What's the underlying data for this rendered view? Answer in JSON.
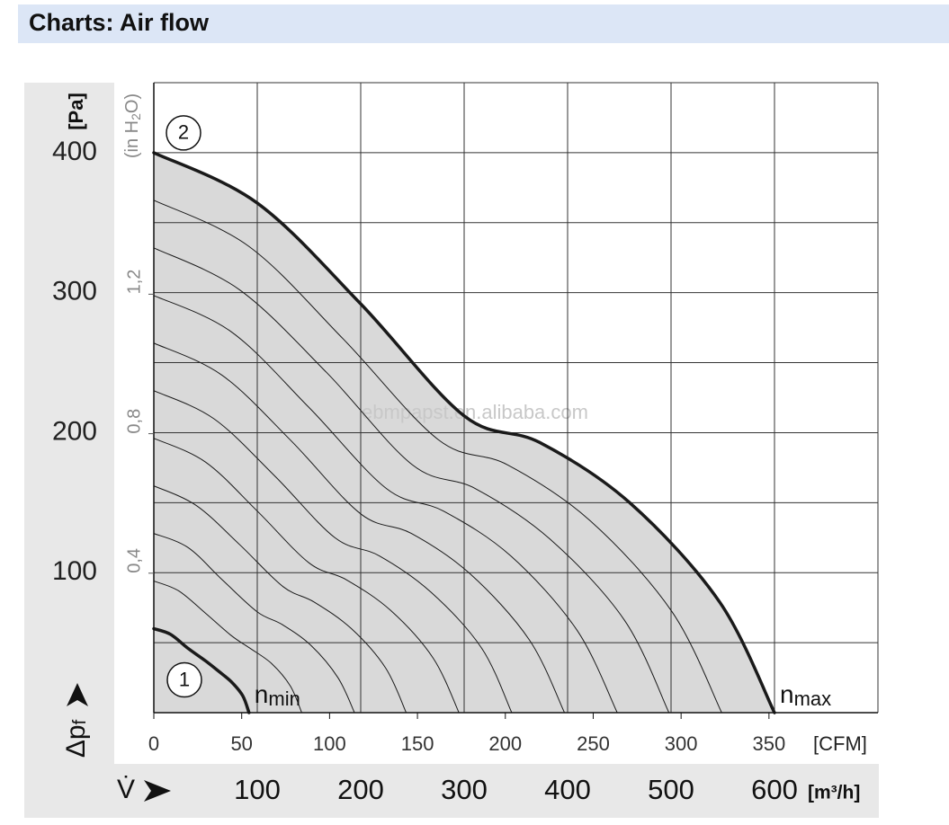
{
  "header": {
    "title": "Charts: Air flow"
  },
  "chart_data": {
    "type": "line",
    "xlim": [
      0,
      700
    ],
    "xticks": [
      100,
      200,
      300,
      400,
      500,
      600
    ],
    "xgrid": [
      0,
      100,
      200,
      300,
      400,
      500,
      600,
      700
    ],
    "x2lim": [
      0,
      412
    ],
    "x2ticks": [
      0,
      50,
      100,
      150,
      200,
      250,
      300,
      350
    ],
    "ylim": [
      0,
      450
    ],
    "yticks": [
      100,
      200,
      300,
      400
    ],
    "ygrid": [
      0,
      50,
      100,
      150,
      200,
      250,
      300,
      350,
      400,
      450
    ],
    "y2lim": [
      0,
      1.8066
    ],
    "y2ticks": [
      {
        "value": 0.4,
        "label": "0,4"
      },
      {
        "value": 0.8,
        "label": "0,8"
      },
      {
        "value": 1.2,
        "label": "1,2"
      }
    ],
    "x_label": "V̇",
    "x_unit": "[m³/h]",
    "x2_unit": "[CFM]",
    "y_label": {
      "base": "Δp",
      "sub": "f"
    },
    "y_unit": "[Pa]",
    "y2_unit": {
      "pre": "(in H",
      "sub": "2",
      "post": "O)"
    },
    "area_color": "#d9d9d9",
    "grid": true,
    "watermark": "ebmpapst.en.alibaba.com",
    "series": [
      {
        "label": {
          "base": "n",
          "sub": "max"
        },
        "marker": "2",
        "color": "#1a1a1a",
        "width": 3.5,
        "x": [
          0,
          100,
          200,
          300,
          373,
          460,
          547,
          600
        ],
        "values": [
          400,
          364,
          292,
          212,
          193,
          150,
          79,
          0
        ]
      },
      {
        "color": "#1a1a1a",
        "width": 1,
        "x": [
          0,
          92,
          183,
          275,
          342,
          422,
          501,
          549
        ],
        "values": [
          366,
          333,
          267,
          195,
          177,
          137,
          72,
          0
        ]
      },
      {
        "color": "#1a1a1a",
        "width": 1,
        "x": [
          0,
          83,
          167,
          250,
          311,
          383,
          455,
          498
        ],
        "values": [
          332,
          302,
          243,
          177,
          160,
          124,
          66,
          0
        ]
      },
      {
        "color": "#1a1a1a",
        "width": 1,
        "x": [
          0,
          75,
          150,
          225,
          280,
          345,
          409,
          448
        ],
        "values": [
          298,
          272,
          218,
          160,
          144,
          112,
          59,
          0
        ]
      },
      {
        "color": "#1a1a1a",
        "width": 1,
        "x": [
          0,
          66,
          133,
          200,
          249,
          306,
          363,
          397
        ],
        "values": [
          264,
          241,
          194,
          142,
          128,
          99,
          52,
          0
        ]
      },
      {
        "color": "#1a1a1a",
        "width": 1,
        "x": [
          0,
          58,
          117,
          175,
          218,
          268,
          317,
          346
        ],
        "values": [
          230,
          210,
          169,
          125,
          112,
          86,
          46,
          0
        ]
      },
      {
        "color": "#1a1a1a",
        "width": 1,
        "x": [
          0,
          50,
          100,
          150,
          186,
          229,
          270,
          295
        ],
        "values": [
          196,
          179,
          144,
          107,
          95,
          73,
          39,
          0
        ]
      },
      {
        "color": "#1a1a1a",
        "width": 1,
        "x": [
          0,
          41,
          83,
          125,
          155,
          191,
          224,
          244
        ],
        "values": [
          162,
          148,
          120,
          90,
          79,
          60,
          32,
          0
        ]
      },
      {
        "color": "#1a1a1a",
        "width": 1,
        "x": [
          0,
          33,
          66,
          100,
          124,
          152,
          178,
          194
        ],
        "values": [
          128,
          118,
          95,
          72,
          63,
          48,
          25,
          0
        ]
      },
      {
        "color": "#1a1a1a",
        "width": 1,
        "x": [
          0,
          24,
          50,
          75,
          93,
          114,
          132,
          143
        ],
        "values": [
          94,
          87,
          71,
          55,
          46,
          35,
          19,
          0
        ]
      },
      {
        "label": {
          "base": "n",
          "sub": "min"
        },
        "marker": "1",
        "color": "#1a1a1a",
        "width": 3.5,
        "x": [
          0,
          16,
          33,
          50,
          62,
          75,
          86,
          92
        ],
        "values": [
          60,
          56,
          46,
          37,
          30,
          22,
          12,
          0
        ]
      }
    ]
  }
}
